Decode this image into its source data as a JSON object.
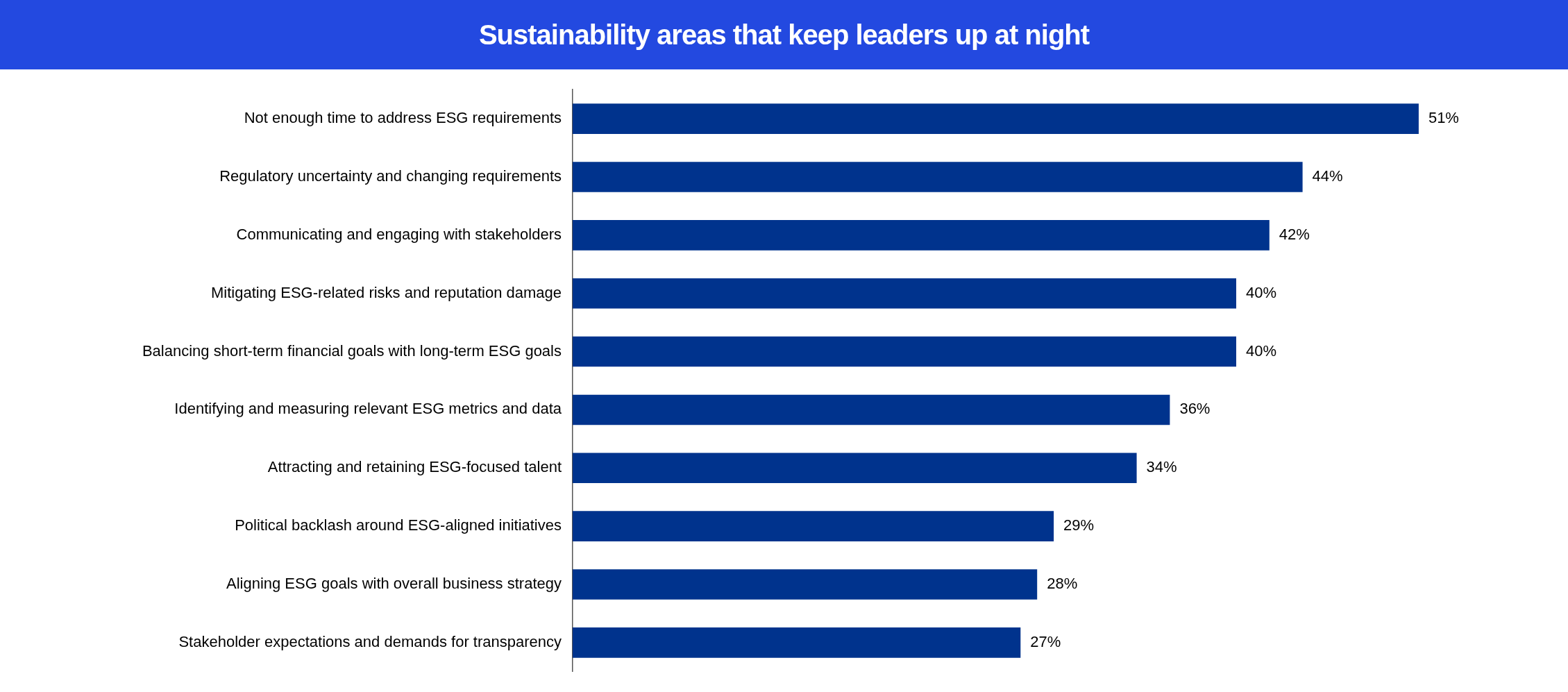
{
  "chart_data": {
    "type": "bar",
    "orientation": "horizontal",
    "title": "Sustainability areas that keep leaders up at night",
    "categories": [
      "Not enough time to address ESG requirements",
      "Regulatory uncertainty and changing requirements",
      "Communicating and engaging with stakeholders",
      "Mitigating ESG-related risks and reputation damage",
      "Balancing short-term financial goals with long-term ESG goals",
      "Identifying and measuring relevant ESG metrics and data",
      "Attracting and retaining ESG-focused talent",
      "Political backlash around ESG-aligned initiatives",
      "Aligning ESG goals with overall business strategy",
      "Stakeholder expectations and demands for transparency"
    ],
    "values": [
      51,
      44,
      42,
      40,
      40,
      36,
      34,
      29,
      28,
      27
    ],
    "value_labels": [
      "51%",
      "44%",
      "42%",
      "40%",
      "40%",
      "36%",
      "34%",
      "29%",
      "28%",
      "27%"
    ],
    "color": "#00338d",
    "grid": false,
    "legend": false,
    "tick_labels": "y"
  }
}
